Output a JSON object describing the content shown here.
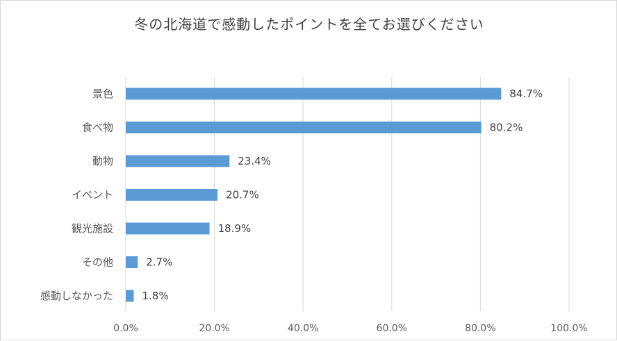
{
  "chart_data": {
    "type": "bar",
    "orientation": "horizontal",
    "title": "冬の北海道で感動したポイントを全てお選びください",
    "categories": [
      "景色",
      "食べ物",
      "動物",
      "イベント",
      "観光施設",
      "その他",
      "感動しなかった"
    ],
    "values": [
      84.7,
      80.2,
      23.4,
      20.7,
      18.9,
      2.7,
      1.8
    ],
    "data_labels": [
      "84.7%",
      "80.2%",
      "23.4%",
      "20.7%",
      "18.9%",
      "2.7%",
      "1.8%"
    ],
    "x_ticks": [
      "0.0%",
      "20.0%",
      "40.0%",
      "60.0%",
      "80.0%",
      "100.0%"
    ],
    "xlim": [
      0,
      100
    ],
    "xlabel": "",
    "ylabel": "",
    "grid": true,
    "legend": "none",
    "bar_color": "#5b9bd5"
  }
}
